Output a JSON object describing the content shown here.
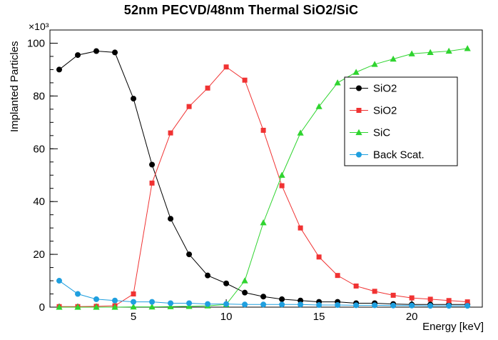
{
  "chart_data": {
    "type": "line",
    "title": "52nm PECVD/48nm Thermal SiO2/SiC",
    "xlabel": "Energy [keV]",
    "ylabel": "Implanted Particles",
    "y_axis_multiplier": "×10³",
    "y_unit_scale": 1000,
    "xlim": [
      0.5,
      23.8
    ],
    "ylim": [
      0,
      105
    ],
    "x_major_ticks": [
      5,
      10,
      15,
      20
    ],
    "y_major_ticks": [
      0,
      20,
      40,
      60,
      80,
      100
    ],
    "grid": false,
    "legend_position": "middle-right",
    "x": [
      1,
      2,
      3,
      4,
      5,
      6,
      7,
      8,
      9,
      10,
      11,
      12,
      13,
      14,
      15,
      16,
      17,
      18,
      19,
      20,
      21,
      22,
      23
    ],
    "series": [
      {
        "name": "SiO2",
        "color": "#000000",
        "marker": "circle",
        "values": [
          90,
          95.5,
          97,
          96.5,
          79,
          54,
          33.5,
          20,
          12,
          9,
          5.5,
          4,
          3,
          2.5,
          2,
          2,
          1.5,
          1.5,
          1.2,
          1,
          1,
          1,
          1
        ]
      },
      {
        "name": "SiO2",
        "color": "#f03232",
        "marker": "square",
        "values": [
          0.2,
          0.2,
          0.3,
          0.5,
          5,
          47,
          66,
          76,
          83,
          91,
          86,
          67,
          46,
          30,
          19,
          12,
          8,
          6,
          4.5,
          3.5,
          3,
          2.5,
          2
        ]
      },
      {
        "name": "SiC",
        "color": "#2fd42f",
        "marker": "triangle",
        "values": [
          0,
          0,
          0,
          0,
          0.1,
          0.1,
          0.2,
          0.3,
          0.5,
          1,
          10,
          32,
          50,
          66,
          76,
          85,
          89,
          92,
          94,
          96,
          96.5,
          97,
          98
        ]
      },
      {
        "name": "Back Scat.",
        "color": "#1f9fdf",
        "marker": "circle",
        "values": [
          10,
          5,
          3,
          2.5,
          2,
          2,
          1.5,
          1.5,
          1.2,
          1.2,
          1,
          1,
          1,
          1,
          0.8,
          0.8,
          0.7,
          0.7,
          0.6,
          0.6,
          0.5,
          0.5,
          0.5
        ]
      }
    ]
  }
}
